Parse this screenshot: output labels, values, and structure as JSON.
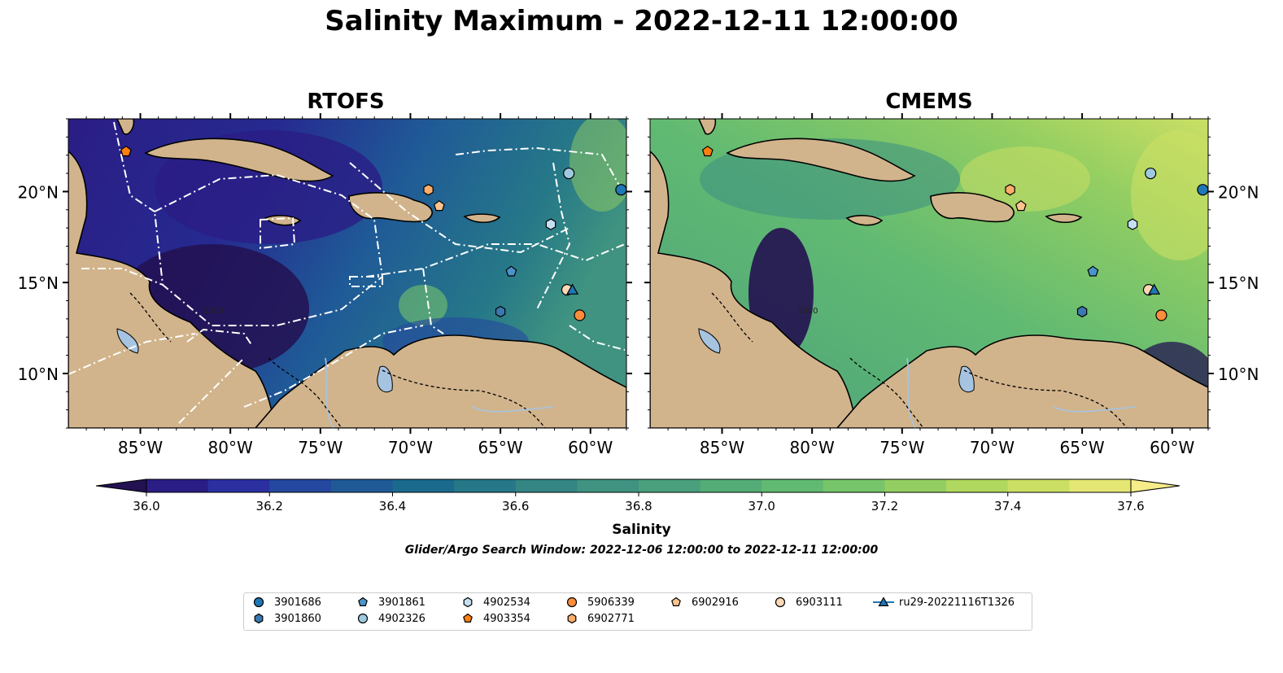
{
  "figure": {
    "title": "Salinity Maximum - 2022-12-11 12:00:00",
    "panels": [
      {
        "id": "rtofs",
        "title": "RTOFS"
      },
      {
        "id": "cmems",
        "title": "CMEMS"
      }
    ],
    "longitude_ticks": [
      "85°W",
      "80°W",
      "75°W",
      "70°W",
      "65°W",
      "60°W"
    ],
    "latitude_ticks": [
      "20°N",
      "15°N",
      "10°N"
    ],
    "map_extent": {
      "lon": [
        -89,
        -58
      ],
      "lat": [
        7,
        24
      ]
    },
    "colors": {
      "land": "#d2b48c",
      "lakes": "#a6c4e0",
      "rivers": "#a6c4e0",
      "eez_lines": "#ffffff",
      "coastline": "#000000"
    },
    "isobath_labels": [
      "1000",
      "1000"
    ]
  },
  "colorbar": {
    "label": "Salinity",
    "ticks": [
      "36.0",
      "36.2",
      "36.4",
      "36.6",
      "36.8",
      "37.0",
      "37.2",
      "37.4",
      "37.6"
    ],
    "range": [
      36.0,
      37.6
    ],
    "extend": "both",
    "colormap": [
      "#231151",
      "#2a1d85",
      "#2b2fa0",
      "#24489f",
      "#1f5a97",
      "#1a6a8e",
      "#267888",
      "#338683",
      "#3f9380",
      "#4aa07c",
      "#54ad77",
      "#61ba72",
      "#77c56a",
      "#93ce62",
      "#b0d75e",
      "#cbdf64",
      "#e4e774",
      "#f6ec8a"
    ],
    "note": "Glider/Argo Search Window: 2022-12-06 12:00:00 to 2022-12-11 12:00:00"
  },
  "legend": {
    "items": [
      {
        "label": "3901686",
        "marker": "circle",
        "color": "#1f77b4"
      },
      {
        "label": "3901860",
        "marker": "hexagon",
        "color": "#3a78b0"
      },
      {
        "label": "3901861",
        "marker": "pentagon",
        "color": "#4a94c9"
      },
      {
        "label": "4902326",
        "marker": "circle",
        "color": "#9ecae1"
      },
      {
        "label": "4902534",
        "marker": "hexagon",
        "color": "#c6e0f2"
      },
      {
        "label": "4903354",
        "marker": "pentagon",
        "color": "#ff7f0e"
      },
      {
        "label": "5906339",
        "marker": "circle",
        "color": "#fd8d3c"
      },
      {
        "label": "6902771",
        "marker": "hexagon",
        "color": "#fdae6b"
      },
      {
        "label": "6902916",
        "marker": "pentagon",
        "color": "#fdc48d"
      },
      {
        "label": "6903111",
        "marker": "circle",
        "color": "#fdd9b5"
      },
      {
        "label": "ru29-20221116T1326",
        "marker": "triangle-line",
        "color": "#1f77b4"
      }
    ]
  },
  "observations": [
    {
      "id": "3901686",
      "lon": -58.3,
      "lat": 20.1
    },
    {
      "id": "3901860",
      "lon": -65.0,
      "lat": 13.4
    },
    {
      "id": "3901861",
      "lon": -64.4,
      "lat": 15.6
    },
    {
      "id": "4902326",
      "lon": -61.2,
      "lat": 21.0
    },
    {
      "id": "4902534",
      "lon": -62.2,
      "lat": 18.2
    },
    {
      "id": "4903354",
      "lon": -85.8,
      "lat": 22.2
    },
    {
      "id": "5906339",
      "lon": -60.6,
      "lat": 13.2
    },
    {
      "id": "6902771",
      "lon": -69.0,
      "lat": 20.1
    },
    {
      "id": "6902916",
      "lon": -68.4,
      "lat": 19.2
    },
    {
      "id": "6903111",
      "lon": -61.3,
      "lat": 14.6
    },
    {
      "id": "ru29-20221116T1326",
      "lon": -61.0,
      "lat": 14.6
    }
  ]
}
